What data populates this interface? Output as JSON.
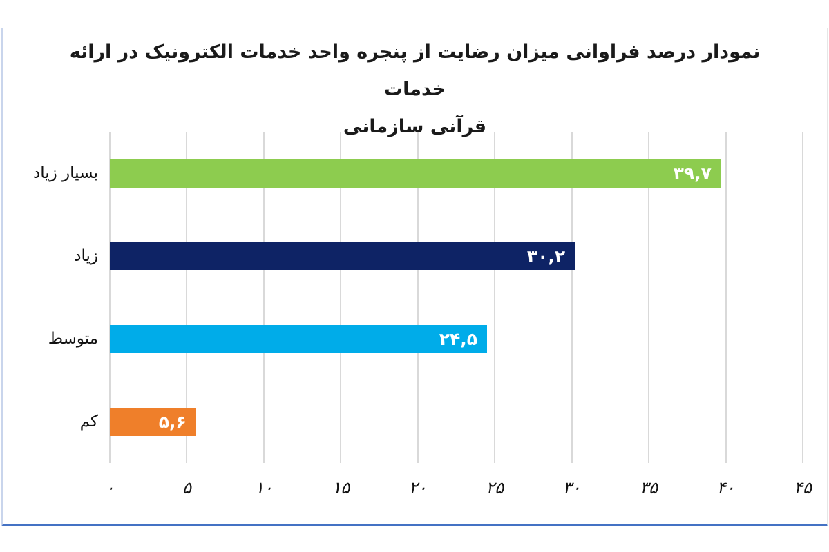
{
  "page": {
    "background_color": "#ffffff",
    "panel_border_bottom_color": "#4472c4",
    "gridline_color": "#d9d9d9"
  },
  "chart_data": {
    "type": "bar",
    "orientation": "horizontal",
    "title_lines": [
      "نمودار درصد فراوانی میزان رضایت از پنجره واحد خدمات الکترونیک در ارائه خدمات",
      "قرآنی سازمانی"
    ],
    "categories": [
      "بسیار زیاد",
      "زیاد",
      "متوسط",
      "کم"
    ],
    "values": [
      39.7,
      30.2,
      24.5,
      5.6
    ],
    "value_labels": [
      "۳۹,۷",
      "۳۰,۲",
      "۲۴,۵",
      "۵,۶"
    ],
    "bar_colors": [
      "#8dcc4f",
      "#0e2365",
      "#00ace9",
      "#ef7f2a"
    ],
    "value_label_color": "#ffffff",
    "xlim": [
      0,
      45
    ],
    "x_ticks": [
      0,
      5,
      10,
      15,
      20,
      25,
      30,
      35,
      40,
      45
    ],
    "x_tick_labels": [
      "۰",
      "۵",
      "۱۰",
      "۱۵",
      "۲۰",
      "۲۵",
      "۳۰",
      "۳۵",
      "۴۰",
      "۴۵"
    ],
    "grid": "vertical-on",
    "legend": "none",
    "xlabel": "",
    "ylabel": ""
  }
}
